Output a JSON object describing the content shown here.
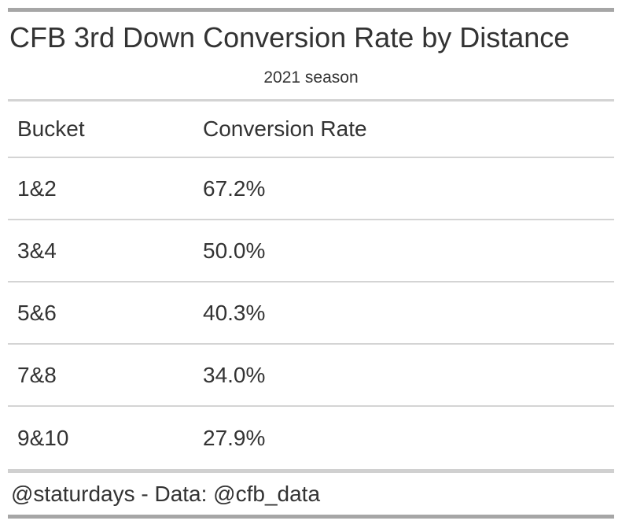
{
  "header": {
    "title": "CFB 3rd Down Conversion Rate by Distance",
    "subtitle": "2021 season"
  },
  "footer": {
    "credit": "@staturdays - Data: @cfb_data"
  },
  "colors": {
    "text": "#333333",
    "accent_bar": "#a6a6a6",
    "row_divider": "#d4d4d4",
    "section_divider": "#d0d0d0",
    "background": "#ffffff"
  },
  "chart_data": {
    "type": "table",
    "title": "CFB 3rd Down Conversion Rate by Distance",
    "subtitle": "2021 season",
    "columns": [
      "Bucket",
      "Conversion Rate"
    ],
    "rows": [
      [
        "1&2",
        "67.2%"
      ],
      [
        "3&4",
        "50.0%"
      ],
      [
        "5&6",
        "40.3%"
      ],
      [
        "7&8",
        "34.0%"
      ],
      [
        "9&10",
        "27.9%"
      ]
    ],
    "footnote": "@staturdays - Data: @cfb_data"
  }
}
